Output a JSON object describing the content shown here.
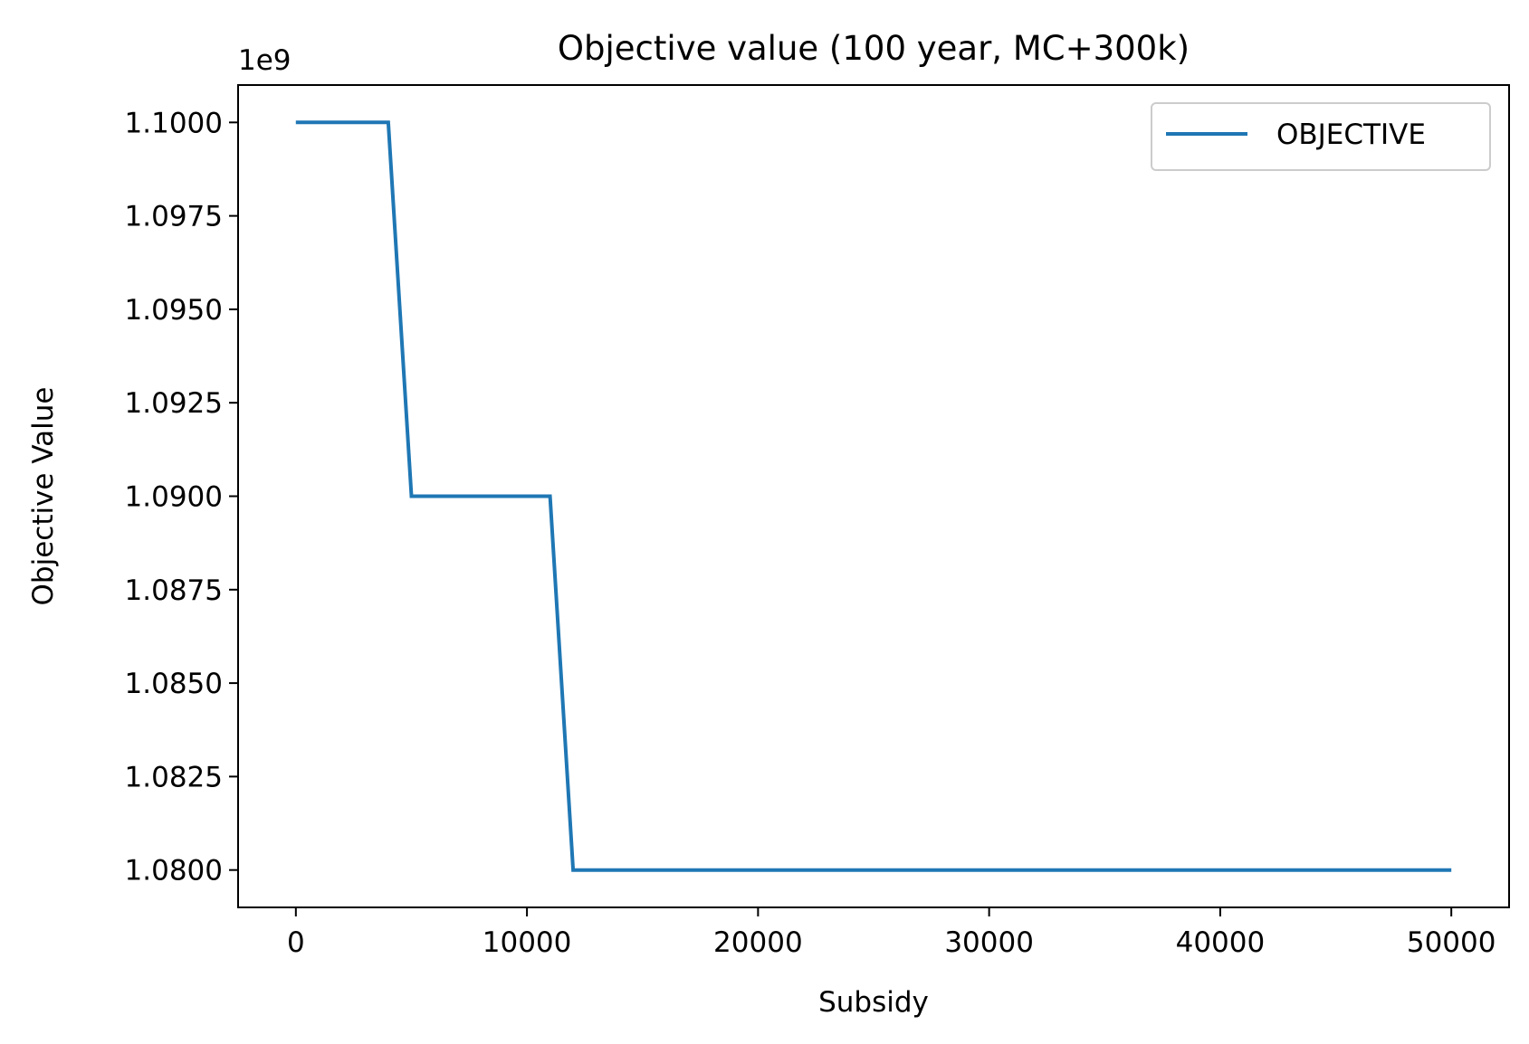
{
  "chart_data": {
    "type": "line",
    "title": "Objective value (100 year, MC+300k)",
    "xlabel": "Subsidy",
    "ylabel": "Objective Value",
    "y_offset_label": "1e9",
    "xlim": [
      -2500,
      52500
    ],
    "ylim": [
      1.079,
      1.101
    ],
    "xticks": [
      0,
      10000,
      20000,
      30000,
      40000,
      50000
    ],
    "xtick_labels": [
      "0",
      "10000",
      "20000",
      "30000",
      "40000",
      "50000"
    ],
    "yticks": [
      1.08,
      1.0825,
      1.085,
      1.0875,
      1.09,
      1.0925,
      1.095,
      1.0975,
      1.1
    ],
    "ytick_labels": [
      "1.0800",
      "1.0825",
      "1.0850",
      "1.0875",
      "1.0900",
      "1.0925",
      "1.0950",
      "1.0975",
      "1.1000"
    ],
    "grid": false,
    "legend_position": "top-right",
    "series": [
      {
        "name": "OBJECTIVE",
        "color": "#1f77b4",
        "x": [
          0,
          4000,
          5000,
          11000,
          12000,
          50000
        ],
        "y": [
          1.1,
          1.1,
          1.09,
          1.09,
          1.08,
          1.08
        ]
      }
    ]
  }
}
